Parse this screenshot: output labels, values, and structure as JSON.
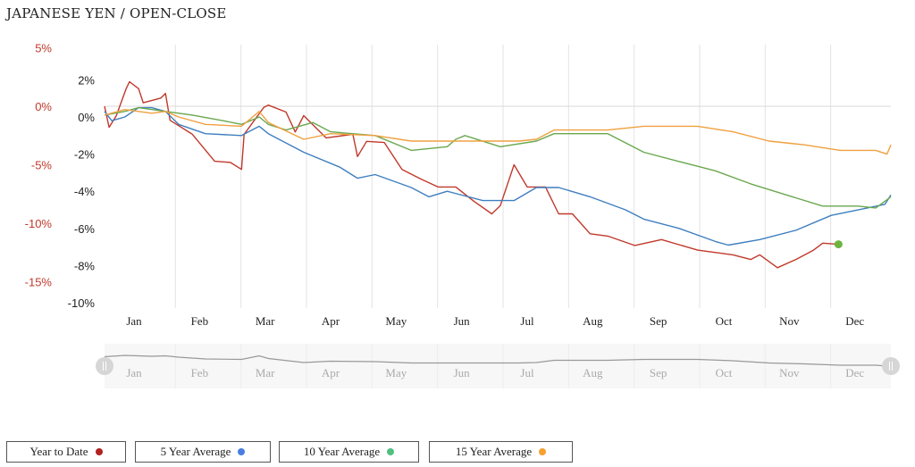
{
  "title": "JAPANESE YEN / OPEN-CLOSE",
  "chart_data": {
    "type": "line",
    "title": "JAPANESE YEN / OPEN-CLOSE",
    "x_unit": "months since Jan 1",
    "xlim": [
      0,
      12
    ],
    "months": [
      "Jan",
      "Feb",
      "Mar",
      "Apr",
      "May",
      "Jun",
      "Jul",
      "Aug",
      "Sep",
      "Oct",
      "Nov",
      "Dec"
    ],
    "axes": {
      "left_red": {
        "ticks": [
          "5%",
          "0%",
          "-5%",
          "-10%",
          "-15%"
        ],
        "values": [
          5,
          0,
          -5,
          -10,
          -15
        ],
        "ylim": [
          -15,
          5
        ],
        "color": "#c0392b"
      },
      "left_black": {
        "ticks": [
          "2%",
          "0%",
          "-2%",
          "-4%",
          "-6%",
          "-8%",
          "-10%"
        ],
        "values": [
          2,
          0,
          -2,
          -4,
          -6,
          -8,
          -10
        ],
        "ylim": [
          -10,
          2
        ],
        "color": "#222222"
      }
    },
    "series": [
      {
        "name": "Year to Date",
        "axis": "left_red",
        "color": "#c0392b",
        "legend_dot": "#b22222",
        "x": [
          0,
          0.07,
          0.18,
          0.33,
          0.38,
          0.52,
          0.59,
          0.86,
          0.93,
          1.0,
          1.34,
          1.68,
          1.92,
          2.09,
          2.13,
          2.43,
          2.5,
          2.77,
          2.91,
          3.04,
          3.38,
          3.79,
          3.86,
          4.0,
          4.27,
          4.54,
          4.82,
          5.09,
          5.36,
          5.63,
          5.91,
          6.04,
          6.25,
          6.45,
          6.73,
          6.93,
          7.14,
          7.41,
          7.68,
          8.09,
          8.5,
          9.05,
          9.59,
          9.86,
          10.0,
          10.27,
          10.55,
          10.82,
          10.96,
          11.2
        ],
        "y": [
          0,
          -1.8,
          -0.8,
          1.5,
          2.1,
          1.5,
          0.3,
          0.7,
          1.1,
          -1.2,
          -2.4,
          -4.7,
          -4.8,
          -5.4,
          -2.4,
          -0.1,
          0.1,
          -0.5,
          -2.2,
          -0.8,
          -2.7,
          -2.4,
          -4.3,
          -3.0,
          -3.1,
          -5.4,
          -6.2,
          -6.9,
          -6.9,
          -8.1,
          -9.2,
          -8.5,
          -5.0,
          -6.9,
          -6.9,
          -9.2,
          -9.2,
          -10.9,
          -11.1,
          -11.9,
          -11.4,
          -12.3,
          -12.7,
          -13.1,
          -12.7,
          -13.8,
          -13.1,
          -12.3,
          -11.7,
          -11.8
        ],
        "end_marker_color": "#6cb33f"
      },
      {
        "name": "5 Year Average",
        "axis": "left_black",
        "color": "#3f7fbf",
        "legend_dot": "#4a7fe0",
        "x": [
          0,
          0.11,
          0.31,
          0.52,
          0.72,
          0.93,
          1.13,
          1.54,
          2.09,
          2.36,
          2.5,
          3.04,
          3.59,
          3.86,
          4.13,
          4.68,
          4.95,
          5.23,
          5.77,
          6.25,
          6.59,
          6.93,
          7.41,
          7.95,
          8.23,
          8.77,
          9.32,
          9.52,
          10.0,
          10.55,
          11.09,
          11.64,
          11.91,
          12.0
        ],
        "y": [
          0.3,
          -0.2,
          0.0,
          0.5,
          0.5,
          0.3,
          -0.4,
          -0.9,
          -1.0,
          -0.5,
          -0.9,
          -1.9,
          -2.7,
          -3.3,
          -3.1,
          -3.8,
          -4.3,
          -4.0,
          -4.5,
          -4.5,
          -3.8,
          -3.8,
          -4.3,
          -5.0,
          -5.5,
          -6.0,
          -6.7,
          -6.9,
          -6.6,
          -6.1,
          -5.3,
          -4.9,
          -4.7,
          -4.2
        ]
      },
      {
        "name": "10 Year Average",
        "axis": "left_black",
        "color": "#6aa84f",
        "legend_dot": "#52be80",
        "x": [
          0,
          0.31,
          0.52,
          0.93,
          1.34,
          1.81,
          2.09,
          2.36,
          2.5,
          2.77,
          3.18,
          3.45,
          4.13,
          4.68,
          5.23,
          5.36,
          5.5,
          6.04,
          6.59,
          6.86,
          7.68,
          8.23,
          8.77,
          9.32,
          9.86,
          10.41,
          10.96,
          11.5,
          11.77,
          12.0
        ],
        "y": [
          0.1,
          0.3,
          0.5,
          0.3,
          0.1,
          -0.2,
          -0.4,
          0.0,
          -0.4,
          -0.7,
          -0.3,
          -0.8,
          -1.0,
          -1.8,
          -1.6,
          -1.2,
          -1.0,
          -1.6,
          -1.3,
          -0.9,
          -0.9,
          -1.9,
          -2.4,
          -2.9,
          -3.6,
          -4.2,
          -4.8,
          -4.8,
          -4.9,
          -4.3
        ]
      },
      {
        "name": "15 Year Average",
        "axis": "left_black",
        "color": "#f0a040",
        "legend_dot": "#f5a030",
        "x": [
          0,
          0.31,
          0.72,
          0.93,
          1.13,
          1.54,
          2.09,
          2.36,
          2.5,
          3.04,
          3.45,
          4.13,
          4.68,
          5.5,
          6.32,
          6.59,
          6.86,
          7.68,
          8.23,
          9.05,
          9.59,
          10.14,
          10.68,
          11.23,
          11.77,
          11.94,
          12.0
        ],
        "y": [
          0.1,
          0.4,
          0.2,
          0.3,
          0.0,
          -0.4,
          -0.5,
          0.3,
          -0.3,
          -1.2,
          -0.9,
          -1.0,
          -1.3,
          -1.3,
          -1.3,
          -1.2,
          -0.7,
          -0.7,
          -0.5,
          -0.5,
          -0.8,
          -1.3,
          -1.5,
          -1.8,
          -1.8,
          -2.0,
          -1.5
        ]
      }
    ],
    "grid": true,
    "legend_placement": "bottom-left",
    "navigator": true
  }
}
